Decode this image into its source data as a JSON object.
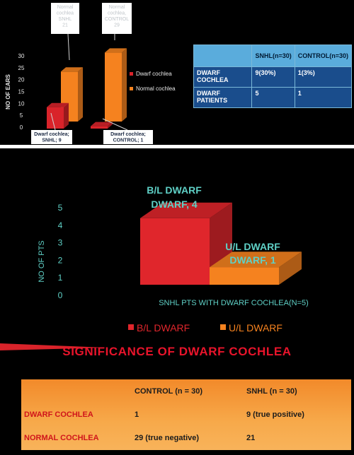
{
  "chart_data": [
    {
      "type": "bar",
      "categories": [
        "SNHL",
        "CONTROL"
      ],
      "series": [
        {
          "name": "Dwarf cochlea",
          "values": [
            9,
            1
          ]
        },
        {
          "name": "Normal cochlea",
          "values": [
            21,
            29
          ]
        }
      ],
      "ylabel": "NO OF EARS",
      "ylim": [
        0,
        30
      ],
      "yticks": [
        "0",
        "5",
        "10",
        "15",
        "20",
        "25",
        "30"
      ],
      "legend": "right",
      "colors": {
        "dwarf": "#d9232a",
        "normal": "#f5821f"
      },
      "annotations": {
        "snhl_normal": "Normal cochlea SNHL 21",
        "control_normal": "Normal cochlea, CONTROL 29",
        "snhl_dwarf": "Dwarf cochlea; SNHL; 9",
        "control_dwarf": "Dwarf cochlea; CONTROL; 1"
      }
    },
    {
      "type": "bar",
      "categories": [
        "B/L DWARF",
        "U/L DWARF"
      ],
      "values": [
        4,
        1
      ],
      "xlabel": "SNHL PTS WITH DWARF COCHLEA(N=5)",
      "ylabel": "NO OF PTS",
      "ylim": [
        0,
        5
      ],
      "yticks": [
        "0",
        "1",
        "2",
        "3",
        "4",
        "5"
      ],
      "legend": "bottom",
      "colors": {
        "bl": "#e0262c",
        "ul": "#f5821f"
      },
      "data_labels": [
        "B/L DWARF, 4",
        "U/L DWARF, 1"
      ]
    }
  ],
  "table1": {
    "headers": [
      "",
      "SNHL(n=30)",
      "CONTROL(n=30)"
    ],
    "rows": [
      [
        "DWARF COCHLEA",
        "9(30%)",
        "1(3%)"
      ],
      [
        "DWARF PATIENTS",
        "5",
        "1"
      ]
    ]
  },
  "significance": {
    "title": "SIGNIFICANCE OF DWARF COCHLEA",
    "headers": [
      "",
      "CONTROL (n = 30)",
      "SNHL (n = 30)"
    ],
    "rows": [
      [
        "DWARF COCHLEA",
        "1",
        "9 (true positive)"
      ],
      [
        "NORMAL COCHLEA",
        "29 (true negative)",
        "21"
      ]
    ]
  }
}
